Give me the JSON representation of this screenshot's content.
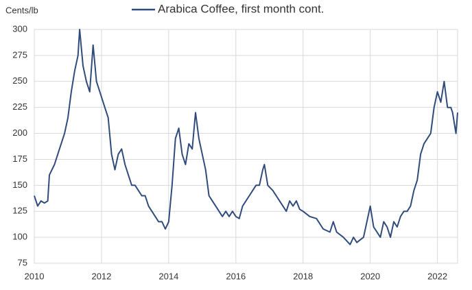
{
  "chart_data": {
    "type": "line",
    "y_label": "Cents/lb",
    "xlim": [
      2010,
      2022.6
    ],
    "xticks": [
      2010,
      2012,
      2014,
      2016,
      2018,
      2020,
      2022
    ],
    "ylim": [
      75,
      300
    ],
    "yticks": [
      75,
      100,
      125,
      150,
      175,
      200,
      225,
      250,
      275,
      300
    ],
    "grid": true,
    "legend": "top",
    "series": [
      {
        "name": "Arabica Coffee, first month cont.",
        "color": "#2f4b7c",
        "x": [
          2010.0,
          2010.1,
          2010.2,
          2010.3,
          2010.4,
          2010.45,
          2010.6,
          2010.75,
          2010.9,
          2011.0,
          2011.1,
          2011.2,
          2011.3,
          2011.35,
          2011.45,
          2011.55,
          2011.65,
          2011.75,
          2011.85,
          2011.95,
          2012.1,
          2012.2,
          2012.3,
          2012.4,
          2012.5,
          2012.6,
          2012.7,
          2012.8,
          2012.9,
          2013.0,
          2013.1,
          2013.2,
          2013.3,
          2013.4,
          2013.5,
          2013.6,
          2013.7,
          2013.8,
          2013.9,
          2014.0,
          2014.1,
          2014.2,
          2014.3,
          2014.4,
          2014.5,
          2014.6,
          2014.7,
          2014.8,
          2014.9,
          2015.0,
          2015.1,
          2015.2,
          2015.3,
          2015.4,
          2015.5,
          2015.6,
          2015.7,
          2015.8,
          2015.9,
          2016.0,
          2016.1,
          2016.2,
          2016.3,
          2016.4,
          2016.5,
          2016.6,
          2016.7,
          2016.8,
          2016.85,
          2016.95,
          2017.1,
          2017.2,
          2017.3,
          2017.4,
          2017.5,
          2017.6,
          2017.7,
          2017.8,
          2017.9,
          2018.0,
          2018.2,
          2018.4,
          2018.6,
          2018.8,
          2018.9,
          2019.0,
          2019.2,
          2019.4,
          2019.5,
          2019.6,
          2019.8,
          2019.9,
          2020.0,
          2020.1,
          2020.2,
          2020.3,
          2020.4,
          2020.5,
          2020.6,
          2020.7,
          2020.8,
          2020.9,
          2021.0,
          2021.1,
          2021.2,
          2021.3,
          2021.4,
          2021.5,
          2021.6,
          2021.7,
          2021.8,
          2021.9,
          2022.0,
          2022.1,
          2022.2,
          2022.3,
          2022.4,
          2022.45,
          2022.55,
          2022.6
        ],
        "values": [
          140,
          130,
          135,
          133,
          135,
          160,
          170,
          185,
          200,
          215,
          240,
          260,
          275,
          300,
          265,
          250,
          240,
          285,
          250,
          240,
          225,
          215,
          180,
          165,
          180,
          185,
          170,
          160,
          150,
          150,
          145,
          140,
          140,
          130,
          125,
          120,
          115,
          115,
          108,
          115,
          150,
          195,
          205,
          180,
          170,
          190,
          185,
          220,
          195,
          180,
          165,
          140,
          135,
          130,
          125,
          120,
          125,
          120,
          125,
          120,
          118,
          130,
          135,
          140,
          145,
          150,
          150,
          165,
          170,
          150,
          145,
          140,
          135,
          130,
          125,
          135,
          130,
          135,
          127,
          125,
          120,
          118,
          108,
          105,
          115,
          105,
          100,
          93,
          100,
          95,
          100,
          115,
          130,
          110,
          105,
          100,
          115,
          110,
          100,
          115,
          110,
          120,
          125,
          125,
          130,
          145,
          155,
          180,
          190,
          195,
          200,
          225,
          240,
          230,
          250,
          225,
          225,
          220,
          200,
          220
        ]
      }
    ]
  }
}
